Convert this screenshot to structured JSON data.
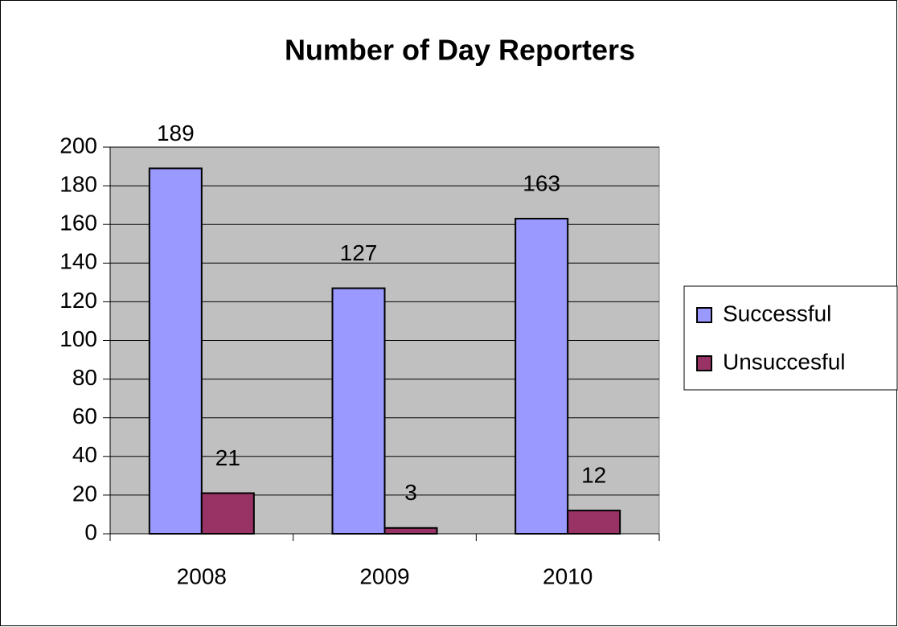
{
  "chart_data": {
    "type": "bar",
    "title": "Number of Day Reporters",
    "categories": [
      "2008",
      "2009",
      "2010"
    ],
    "series": [
      {
        "name": "Successful",
        "color": "#9999ff",
        "values": [
          189,
          127,
          163
        ]
      },
      {
        "name": "Unsuccesful",
        "color": "#993366",
        "values": [
          21,
          3,
          12
        ]
      }
    ],
    "ylim": [
      0,
      200
    ],
    "yticks": [
      0,
      20,
      40,
      60,
      80,
      100,
      120,
      140,
      160,
      180,
      200
    ],
    "grid": true,
    "legend": "right",
    "plot_background": "#c0c0c0"
  }
}
